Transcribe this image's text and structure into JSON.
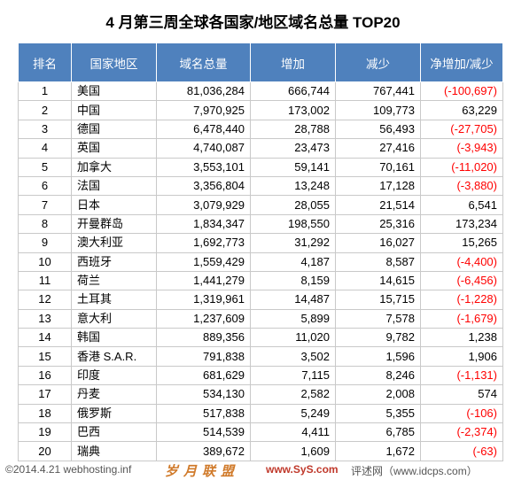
{
  "title": "4 月第三周全球各国家/地区域名总量 TOP20",
  "headers": [
    "排名",
    "国家地区",
    "域名总量",
    "增加",
    "减少",
    "净增加/减少"
  ],
  "rows": [
    {
      "rank": "1",
      "country": "美国",
      "total": "81,036,284",
      "increase": "666,744",
      "decrease": "767,441",
      "net": "(-100,697)",
      "negative": true
    },
    {
      "rank": "2",
      "country": "中国",
      "total": "7,970,925",
      "increase": "173,002",
      "decrease": "109,773",
      "net": "63,229",
      "negative": false
    },
    {
      "rank": "3",
      "country": "德国",
      "total": "6,478,440",
      "increase": "28,788",
      "decrease": "56,493",
      "net": "(-27,705)",
      "negative": true
    },
    {
      "rank": "4",
      "country": "英国",
      "total": "4,740,087",
      "increase": "23,473",
      "decrease": "27,416",
      "net": "(-3,943)",
      "negative": true
    },
    {
      "rank": "5",
      "country": "加拿大",
      "total": "3,553,101",
      "increase": "59,141",
      "decrease": "70,161",
      "net": "(-11,020)",
      "negative": true
    },
    {
      "rank": "6",
      "country": "法国",
      "total": "3,356,804",
      "increase": "13,248",
      "decrease": "17,128",
      "net": "(-3,880)",
      "negative": true
    },
    {
      "rank": "7",
      "country": "日本",
      "total": "3,079,929",
      "increase": "28,055",
      "decrease": "21,514",
      "net": "6,541",
      "negative": false
    },
    {
      "rank": "8",
      "country": "开曼群岛",
      "total": "1,834,347",
      "increase": "198,550",
      "decrease": "25,316",
      "net": "173,234",
      "negative": false
    },
    {
      "rank": "9",
      "country": "澳大利亚",
      "total": "1,692,773",
      "increase": "31,292",
      "decrease": "16,027",
      "net": "15,265",
      "negative": false
    },
    {
      "rank": "10",
      "country": "西班牙",
      "total": "1,559,429",
      "increase": "4,187",
      "decrease": "8,587",
      "net": "(-4,400)",
      "negative": true
    },
    {
      "rank": "11",
      "country": "荷兰",
      "total": "1,441,279",
      "increase": "8,159",
      "decrease": "14,615",
      "net": "(-6,456)",
      "negative": true
    },
    {
      "rank": "12",
      "country": "土耳其",
      "total": "1,319,961",
      "increase": "14,487",
      "decrease": "15,715",
      "net": "(-1,228)",
      "negative": true
    },
    {
      "rank": "13",
      "country": "意大利",
      "total": "1,237,609",
      "increase": "5,899",
      "decrease": "7,578",
      "net": "(-1,679)",
      "negative": true
    },
    {
      "rank": "14",
      "country": "韩国",
      "total": "889,356",
      "increase": "11,020",
      "decrease": "9,782",
      "net": "1,238",
      "negative": false
    },
    {
      "rank": "15",
      "country": "香港 S.A.R.",
      "total": "791,838",
      "increase": "3,502",
      "decrease": "1,596",
      "net": "1,906",
      "negative": false
    },
    {
      "rank": "16",
      "country": "印度",
      "total": "681,629",
      "increase": "7,115",
      "decrease": "8,246",
      "net": "(-1,131)",
      "negative": true
    },
    {
      "rank": "17",
      "country": "丹麦",
      "total": "534,130",
      "increase": "2,582",
      "decrease": "2,008",
      "net": "574",
      "negative": false
    },
    {
      "rank": "18",
      "country": "俄罗斯",
      "total": "517,838",
      "increase": "5,249",
      "decrease": "5,355",
      "net": "(-106)",
      "negative": true
    },
    {
      "rank": "19",
      "country": "巴西",
      "total": "514,539",
      "increase": "4,411",
      "decrease": "6,785",
      "net": "(-2,374)",
      "negative": true
    },
    {
      "rank": "20",
      "country": "瑞典",
      "total": "389,672",
      "increase": "1,609",
      "decrease": "1,672",
      "net": "(-63)",
      "negative": true
    }
  ],
  "footer": {
    "copyright": "©2014.4.21 webhosting.inf",
    "brand": "岁月联盟",
    "mid": "www.SyS.com",
    "right": "评述网（www.idcps.com）"
  },
  "colors": {
    "header_bg": "#4f81bd",
    "negative": "#ff0000"
  }
}
